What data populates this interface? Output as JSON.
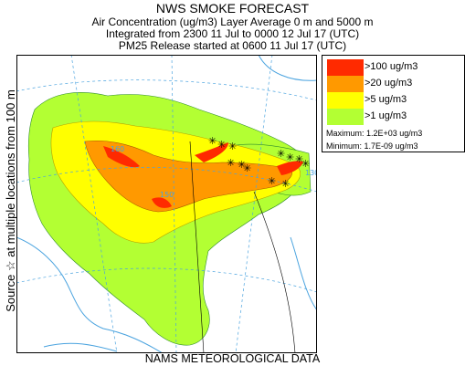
{
  "title": "NWS SMOKE FORECAST",
  "subtitle_lines": [
    "Air Concentration (ug/m3) Layer Average    0 m and  5000 m",
    "Integrated from 2300 11 Jul to 0000 12 Jul 17 (UTC)",
    "PM25 Release started at 0600 11 Jul 17 (UTC)"
  ],
  "side_label": "Source ☆ at multiple locations  from   100 m",
  "footer": "NAMS METEOROLOGICAL DATA",
  "legend": {
    "items": [
      {
        "label": ">100 ug/m3",
        "color": "#ff2a00"
      },
      {
        "label": ">20 ug/m3",
        "color": "#ff9900"
      },
      {
        "label": ">5 ug/m3",
        "color": "#ffff00"
      },
      {
        "label": ">1 ug/m3",
        "color": "#b3ff33"
      }
    ],
    "maximum": "Maximum: 1.2E+03 ug/m3",
    "minimum": "Minimum: 1.7E-09 ug/m3"
  },
  "map": {
    "graticule_labels": [
      "160",
      "150",
      "130"
    ],
    "colors": {
      "water": "#4aa3df",
      "border": "#000000"
    }
  }
}
